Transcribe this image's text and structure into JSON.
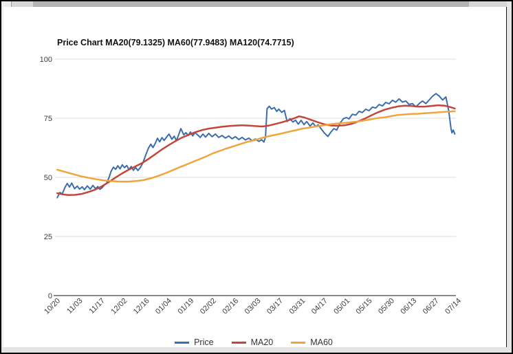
{
  "window": {
    "scrollbar_orientation": "horizontal"
  },
  "chart_data": {
    "type": "line",
    "title": "Price Chart MA20(79.1325) MA60(77.9483) MA120(74.7715)",
    "xlabel": "",
    "ylabel": "",
    "ylim": [
      0,
      100
    ],
    "grid": true,
    "legend_position": "bottom",
    "y_ticks": [
      0,
      25,
      50,
      75,
      100
    ],
    "x_tick_labels": [
      "10/20",
      "11/03",
      "11/17",
      "12/02",
      "12/16",
      "01/04",
      "01/19",
      "02/02",
      "02/16",
      "03/03",
      "03/17",
      "03/31",
      "04/17",
      "05/01",
      "05/15",
      "05/30",
      "06/13",
      "06/27",
      "07/14"
    ],
    "last_values": {
      "MA20": 79.1325,
      "MA60": 77.9483,
      "MA120": 74.7715
    },
    "series": [
      {
        "name": "Price",
        "color": "#3b6cae",
        "width": 2,
        "points": [
          [
            0.1,
            41.4
          ],
          [
            0.22,
            43.6
          ],
          [
            0.32,
            43.0
          ],
          [
            0.45,
            45.8
          ],
          [
            0.55,
            47.4
          ],
          [
            0.65,
            45.9
          ],
          [
            0.75,
            47.6
          ],
          [
            0.88,
            45.2
          ],
          [
            1.0,
            46.3
          ],
          [
            1.1,
            45.0
          ],
          [
            1.22,
            46.0
          ],
          [
            1.32,
            44.8
          ],
          [
            1.45,
            46.4
          ],
          [
            1.58,
            45.0
          ],
          [
            1.7,
            46.6
          ],
          [
            1.82,
            45.2
          ],
          [
            1.92,
            46.1
          ],
          [
            2.02,
            44.9
          ],
          [
            2.12,
            45.7
          ],
          [
            2.22,
            46.8
          ],
          [
            2.32,
            47.6
          ],
          [
            2.42,
            49.8
          ],
          [
            2.52,
            52.6
          ],
          [
            2.62,
            54.3
          ],
          [
            2.72,
            53.4
          ],
          [
            2.82,
            54.9
          ],
          [
            2.92,
            53.6
          ],
          [
            3.02,
            55.3
          ],
          [
            3.12,
            54.1
          ],
          [
            3.22,
            55.0
          ],
          [
            3.32,
            53.3
          ],
          [
            3.42,
            54.6
          ],
          [
            3.52,
            53.0
          ],
          [
            3.62,
            54.2
          ],
          [
            3.72,
            52.9
          ],
          [
            3.82,
            54.0
          ],
          [
            3.95,
            56.2
          ],
          [
            4.08,
            59.6
          ],
          [
            4.2,
            62.4
          ],
          [
            4.3,
            64.0
          ],
          [
            4.4,
            62.6
          ],
          [
            4.5,
            64.4
          ],
          [
            4.6,
            66.5
          ],
          [
            4.7,
            65.0
          ],
          [
            4.8,
            66.8
          ],
          [
            4.9,
            65.6
          ],
          [
            5.0,
            66.9
          ],
          [
            5.12,
            68.3
          ],
          [
            5.25,
            66.1
          ],
          [
            5.35,
            67.4
          ],
          [
            5.45,
            65.5
          ],
          [
            5.55,
            68.0
          ],
          [
            5.65,
            70.6
          ],
          [
            5.78,
            68.0
          ],
          [
            5.88,
            68.9
          ],
          [
            5.98,
            67.7
          ],
          [
            6.08,
            69.2
          ],
          [
            6.18,
            67.5
          ],
          [
            6.28,
            68.9
          ],
          [
            6.4,
            68.0
          ],
          [
            6.52,
            66.9
          ],
          [
            6.64,
            68.3
          ],
          [
            6.76,
            67.0
          ],
          [
            6.9,
            68.6
          ],
          [
            7.05,
            67.2
          ],
          [
            7.2,
            68.3
          ],
          [
            7.35,
            66.9
          ],
          [
            7.5,
            67.7
          ],
          [
            7.65,
            66.6
          ],
          [
            7.8,
            67.5
          ],
          [
            7.95,
            66.3
          ],
          [
            8.1,
            67.2
          ],
          [
            8.25,
            66.0
          ],
          [
            8.4,
            66.9
          ],
          [
            8.55,
            65.8
          ],
          [
            8.7,
            66.6
          ],
          [
            8.85,
            65.5
          ],
          [
            9.0,
            66.2
          ],
          [
            9.15,
            65.2
          ],
          [
            9.28,
            65.9
          ],
          [
            9.38,
            64.9
          ],
          [
            9.45,
            67.0
          ],
          [
            9.52,
            79.0
          ],
          [
            9.62,
            80.1
          ],
          [
            9.72,
            78.9
          ],
          [
            9.85,
            79.5
          ],
          [
            9.95,
            77.9
          ],
          [
            10.05,
            78.8
          ],
          [
            10.18,
            77.5
          ],
          [
            10.3,
            78.3
          ],
          [
            10.42,
            73.6
          ],
          [
            10.55,
            74.8
          ],
          [
            10.68,
            73.4
          ],
          [
            10.8,
            74.2
          ],
          [
            10.92,
            72.5
          ],
          [
            11.05,
            74.1
          ],
          [
            11.18,
            72.3
          ],
          [
            11.3,
            73.6
          ],
          [
            11.45,
            71.7
          ],
          [
            11.58,
            73.0
          ],
          [
            11.7,
            71.5
          ],
          [
            11.82,
            72.2
          ],
          [
            11.95,
            70.5
          ],
          [
            12.1,
            68.7
          ],
          [
            12.25,
            67.3
          ],
          [
            12.4,
            69.3
          ],
          [
            12.52,
            70.6
          ],
          [
            12.65,
            70.0
          ],
          [
            12.8,
            73.0
          ],
          [
            12.95,
            74.8
          ],
          [
            13.08,
            75.3
          ],
          [
            13.2,
            74.7
          ],
          [
            13.35,
            76.7
          ],
          [
            13.5,
            76.3
          ],
          [
            13.65,
            77.9
          ],
          [
            13.8,
            77.4
          ],
          [
            13.95,
            78.8
          ],
          [
            14.1,
            78.2
          ],
          [
            14.25,
            79.7
          ],
          [
            14.4,
            79.3
          ],
          [
            14.55,
            80.8
          ],
          [
            14.7,
            80.2
          ],
          [
            14.85,
            81.7
          ],
          [
            15.0,
            81.1
          ],
          [
            15.15,
            82.6
          ],
          [
            15.3,
            81.8
          ],
          [
            15.45,
            83.2
          ],
          [
            15.6,
            81.8
          ],
          [
            15.75,
            82.3
          ],
          [
            15.9,
            80.8
          ],
          [
            16.05,
            81.2
          ],
          [
            16.2,
            79.8
          ],
          [
            16.35,
            81.2
          ],
          [
            16.5,
            82.3
          ],
          [
            16.65,
            81.2
          ],
          [
            16.8,
            82.7
          ],
          [
            16.95,
            84.3
          ],
          [
            17.1,
            85.4
          ],
          [
            17.25,
            84.4
          ],
          [
            17.4,
            82.7
          ],
          [
            17.55,
            84.0
          ],
          [
            17.68,
            78.0
          ],
          [
            17.78,
            70.5
          ],
          [
            17.82,
            68.8
          ],
          [
            17.88,
            70.0
          ],
          [
            17.95,
            68.3
          ]
        ]
      },
      {
        "name": "MA20",
        "color": "#c2473a",
        "width": 2.5,
        "points": [
          [
            0.1,
            43.3
          ],
          [
            0.35,
            42.8
          ],
          [
            0.6,
            42.5
          ],
          [
            0.9,
            42.6
          ],
          [
            1.2,
            43.0
          ],
          [
            1.5,
            43.8
          ],
          [
            1.8,
            44.8
          ],
          [
            2.1,
            46.2
          ],
          [
            2.4,
            47.9
          ],
          [
            2.7,
            49.8
          ],
          [
            3.0,
            51.6
          ],
          [
            3.3,
            53.2
          ],
          [
            3.6,
            54.6
          ],
          [
            3.9,
            56.0
          ],
          [
            4.2,
            57.8
          ],
          [
            4.5,
            59.8
          ],
          [
            4.8,
            61.8
          ],
          [
            5.1,
            63.6
          ],
          [
            5.4,
            65.3
          ],
          [
            5.7,
            66.8
          ],
          [
            6.0,
            68.0
          ],
          [
            6.3,
            69.1
          ],
          [
            6.6,
            70.0
          ],
          [
            6.9,
            70.6
          ],
          [
            7.2,
            71.0
          ],
          [
            7.5,
            71.4
          ],
          [
            7.8,
            71.7
          ],
          [
            8.1,
            71.9
          ],
          [
            8.4,
            72.0
          ],
          [
            8.7,
            71.9
          ],
          [
            9.0,
            71.7
          ],
          [
            9.3,
            71.5
          ],
          [
            9.6,
            71.9
          ],
          [
            9.9,
            72.6
          ],
          [
            10.2,
            73.3
          ],
          [
            10.5,
            74.2
          ],
          [
            10.8,
            75.2
          ],
          [
            10.96,
            75.8
          ],
          [
            11.2,
            75.3
          ],
          [
            11.5,
            74.3
          ],
          [
            11.8,
            73.3
          ],
          [
            12.1,
            72.4
          ],
          [
            12.4,
            71.9
          ],
          [
            12.7,
            71.8
          ],
          [
            13.0,
            72.0
          ],
          [
            13.3,
            72.6
          ],
          [
            13.6,
            73.6
          ],
          [
            13.9,
            74.8
          ],
          [
            14.2,
            76.2
          ],
          [
            14.5,
            77.5
          ],
          [
            14.8,
            78.6
          ],
          [
            15.1,
            79.4
          ],
          [
            15.4,
            80.0
          ],
          [
            15.7,
            80.3
          ],
          [
            16.0,
            80.2
          ],
          [
            16.3,
            79.9
          ],
          [
            16.6,
            79.9
          ],
          [
            16.9,
            80.2
          ],
          [
            17.2,
            80.5
          ],
          [
            17.5,
            80.3
          ],
          [
            17.75,
            79.7
          ],
          [
            17.95,
            79.1
          ]
        ]
      },
      {
        "name": "MA60",
        "color": "#f0a43c",
        "width": 2.5,
        "points": [
          [
            0.1,
            53.2
          ],
          [
            0.45,
            52.3
          ],
          [
            0.8,
            51.4
          ],
          [
            1.15,
            50.5
          ],
          [
            1.5,
            49.8
          ],
          [
            1.85,
            49.2
          ],
          [
            2.2,
            48.7
          ],
          [
            2.55,
            48.4
          ],
          [
            2.9,
            48.2
          ],
          [
            3.25,
            48.2
          ],
          [
            3.6,
            48.4
          ],
          [
            3.95,
            48.8
          ],
          [
            4.3,
            49.6
          ],
          [
            4.63,
            50.6
          ],
          [
            5.0,
            51.9
          ],
          [
            5.3,
            53.1
          ],
          [
            5.6,
            54.3
          ],
          [
            5.9,
            55.4
          ],
          [
            6.2,
            56.6
          ],
          [
            6.5,
            57.7
          ],
          [
            6.8,
            58.9
          ],
          [
            7.1,
            60.2
          ],
          [
            7.4,
            61.2
          ],
          [
            7.7,
            62.2
          ],
          [
            8.0,
            63.1
          ],
          [
            8.3,
            64.0
          ],
          [
            8.6,
            64.9
          ],
          [
            8.95,
            65.7
          ],
          [
            9.3,
            66.7
          ],
          [
            9.6,
            67.4
          ],
          [
            9.9,
            68.0
          ],
          [
            10.2,
            68.6
          ],
          [
            10.5,
            69.3
          ],
          [
            10.8,
            69.9
          ],
          [
            11.1,
            70.6
          ],
          [
            11.4,
            71.0
          ],
          [
            11.7,
            71.5
          ],
          [
            12.0,
            71.9
          ],
          [
            12.35,
            72.4
          ],
          [
            12.7,
            72.8
          ],
          [
            13.0,
            73.0
          ],
          [
            13.3,
            73.3
          ],
          [
            13.6,
            73.6
          ],
          [
            13.9,
            74.1
          ],
          [
            14.2,
            74.6
          ],
          [
            14.5,
            75.1
          ],
          [
            14.8,
            75.4
          ],
          [
            15.1,
            75.9
          ],
          [
            15.4,
            76.4
          ],
          [
            15.7,
            76.6
          ],
          [
            16.0,
            76.8
          ],
          [
            16.3,
            76.9
          ],
          [
            16.6,
            77.1
          ],
          [
            16.9,
            77.3
          ],
          [
            17.2,
            77.5
          ],
          [
            17.5,
            77.7
          ],
          [
            17.75,
            77.85
          ],
          [
            17.95,
            77.95
          ]
        ]
      }
    ]
  },
  "legend": {
    "items": [
      "Price",
      "MA20",
      "MA60"
    ]
  }
}
